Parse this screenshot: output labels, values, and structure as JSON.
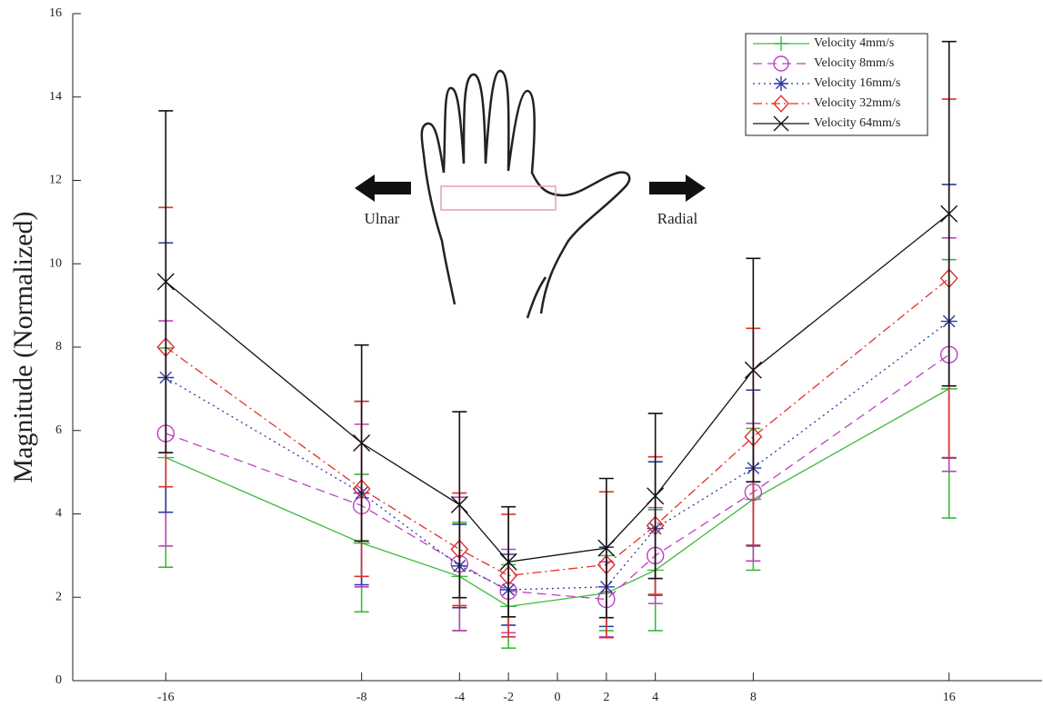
{
  "chart_data": {
    "type": "line",
    "y_label": "Magnitude (Normalized)",
    "annotations": [
      "Ulnar",
      "Radial"
    ],
    "x": [
      -16,
      -8,
      -4,
      -2,
      2,
      4,
      8,
      16
    ],
    "xlim": [
      -19.8,
      19.8
    ],
    "xticks": [
      -16,
      -8,
      -4,
      -2,
      0,
      2,
      4,
      8,
      16
    ],
    "ylim": [
      0,
      16
    ],
    "yticks": [
      0,
      2,
      4,
      6,
      8,
      10,
      12,
      14,
      16
    ],
    "legend": "upper right",
    "series": [
      {
        "name": "Velocity 4mm/s",
        "color": "#3cb93c",
        "marker": "plus",
        "linestyle": "solid",
        "values": [
          5.35,
          3.3,
          2.5,
          1.78,
          2.1,
          2.65,
          4.35,
          7.0
        ],
        "errors": [
          2.63,
          1.65,
          1.3,
          1.0,
          0.9,
          1.45,
          1.7,
          3.1
        ]
      },
      {
        "name": "Velocity 8mm/s",
        "color": "#c040c0",
        "marker": "circle",
        "linestyle": "dashed",
        "values": [
          5.93,
          4.2,
          2.8,
          2.15,
          1.95,
          3.0,
          4.52,
          7.82
        ],
        "errors": [
          2.7,
          1.95,
          1.6,
          1.0,
          0.9,
          1.15,
          1.65,
          2.8
        ]
      },
      {
        "name": "Velocity 16mm/s",
        "color": "#2b3aa0",
        "marker": "asterisk",
        "linestyle": "dotted",
        "values": [
          7.27,
          4.5,
          2.75,
          2.18,
          2.25,
          3.65,
          5.1,
          8.62
        ],
        "errors": [
          3.23,
          2.2,
          1.0,
          0.85,
          0.95,
          1.6,
          1.87,
          3.28
        ]
      },
      {
        "name": "Velocity 32mm/s",
        "color": "#e0302a",
        "marker": "diamond",
        "linestyle": "dashdot",
        "values": [
          8.0,
          4.6,
          3.15,
          2.52,
          2.78,
          3.72,
          5.85,
          9.65
        ],
        "errors": [
          3.35,
          2.1,
          1.35,
          1.47,
          1.75,
          1.65,
          2.6,
          4.3
        ]
      },
      {
        "name": "Velocity 64mm/s",
        "color": "#111111",
        "marker": "x",
        "linestyle": "solid",
        "values": [
          9.57,
          5.7,
          4.22,
          2.85,
          3.18,
          4.43,
          7.45,
          11.2
        ],
        "errors": [
          4.1,
          2.35,
          2.23,
          1.32,
          1.67,
          1.98,
          2.68,
          4.13
        ]
      }
    ]
  }
}
